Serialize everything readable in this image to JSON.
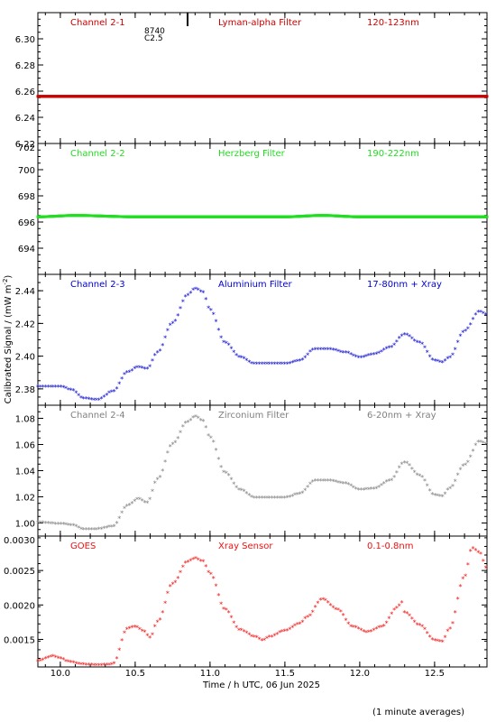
{
  "figure": {
    "ylabel": "Calibrated Signal / (mW m",
    "ylabel_sup": "-2",
    "ylabel_end": ")",
    "xlabel": "Time / h UTC, 06 Jun 2025",
    "footnote": "(1 minute averages)",
    "marker_label_1": "8740",
    "marker_label_2": "C2.5",
    "x_ticks": [
      "10.0",
      "10.5",
      "11.0",
      "11.5",
      "12.0",
      "12.5"
    ]
  },
  "chart_data": [
    {
      "type": "scatter",
      "channel": "Channel 2-1",
      "filter": "Lyman-alpha Filter",
      "band": "120-123nm",
      "color": "#cc0000",
      "xlim": [
        9.85,
        12.85
      ],
      "ylim": [
        6.22,
        6.32
      ],
      "yticks": [
        "6.22",
        "6.24",
        "6.26",
        "6.28",
        "6.30"
      ],
      "x": [
        9.85,
        10.5,
        11.0,
        11.5,
        12.0,
        12.5,
        12.85
      ],
      "y": [
        6.256,
        6.256,
        6.256,
        6.256,
        6.256,
        6.256,
        6.256
      ]
    },
    {
      "type": "scatter",
      "channel": "Channel 2-2",
      "filter": "Herzberg Filter",
      "band": "190-222nm",
      "color": "#22dd22",
      "xlim": [
        9.85,
        12.85
      ],
      "ylim": [
        692,
        702
      ],
      "yticks": [
        "694",
        "696",
        "698",
        "700",
        "702"
      ],
      "x": [
        9.85,
        10.1,
        10.5,
        11.0,
        11.5,
        11.75,
        12.0,
        12.5,
        12.85
      ],
      "y": [
        696.4,
        696.5,
        696.4,
        696.4,
        696.4,
        696.5,
        696.4,
        696.4,
        696.4
      ]
    },
    {
      "type": "scatter",
      "channel": "Channel 2-3",
      "filter": "Aluminium Filter",
      "band": "17-80nm + Xray",
      "color": "#0000cc",
      "xlim": [
        9.85,
        12.85
      ],
      "ylim": [
        2.37,
        2.45
      ],
      "yticks": [
        "2.38",
        "2.40",
        "2.42",
        "2.44"
      ],
      "x": [
        9.85,
        10.0,
        10.08,
        10.15,
        10.25,
        10.35,
        10.45,
        10.52,
        10.58,
        10.65,
        10.75,
        10.85,
        10.9,
        10.95,
        11.0,
        11.1,
        11.2,
        11.3,
        11.4,
        11.5,
        11.6,
        11.7,
        11.8,
        11.9,
        12.0,
        12.1,
        12.2,
        12.3,
        12.4,
        12.5,
        12.55,
        12.6,
        12.7,
        12.8,
        12.85
      ],
      "y": [
        2.381,
        2.381,
        2.379,
        2.374,
        2.373,
        2.378,
        2.39,
        2.393,
        2.392,
        2.402,
        2.42,
        2.437,
        2.441,
        2.439,
        2.428,
        2.408,
        2.399,
        2.395,
        2.395,
        2.395,
        2.397,
        2.404,
        2.404,
        2.402,
        2.399,
        2.401,
        2.405,
        2.413,
        2.408,
        2.397,
        2.396,
        2.399,
        2.415,
        2.427,
        2.425
      ]
    },
    {
      "type": "scatter",
      "channel": "Channel 2-4",
      "filter": "Zirconium Filter",
      "band": "6-20nm + Xray",
      "color": "#808080",
      "xlim": [
        9.85,
        12.85
      ],
      "ylim": [
        0.99,
        1.09
      ],
      "yticks": [
        "1.00",
        "1.02",
        "1.04",
        "1.06",
        "1.08"
      ],
      "x": [
        9.85,
        10.0,
        10.08,
        10.15,
        10.25,
        10.35,
        10.45,
        10.52,
        10.58,
        10.65,
        10.75,
        10.85,
        10.9,
        10.95,
        11.0,
        11.1,
        11.2,
        11.3,
        11.4,
        11.5,
        11.6,
        11.7,
        11.8,
        11.9,
        12.0,
        12.1,
        12.2,
        12.3,
        12.4,
        12.5,
        12.55,
        12.6,
        12.7,
        12.8,
        12.85
      ],
      "y": [
        1.0,
        0.999,
        0.998,
        0.995,
        0.995,
        0.997,
        1.013,
        1.018,
        1.015,
        1.033,
        1.06,
        1.077,
        1.081,
        1.078,
        1.065,
        1.038,
        1.025,
        1.019,
        1.019,
        1.019,
        1.022,
        1.032,
        1.032,
        1.03,
        1.025,
        1.026,
        1.032,
        1.046,
        1.036,
        1.021,
        1.02,
        1.026,
        1.044,
        1.062,
        1.06
      ]
    },
    {
      "type": "scatter",
      "channel": "GOES",
      "filter": "Xray Sensor",
      "band": "0.1-0.8nm",
      "color": "#ee1111",
      "xlim": [
        9.85,
        12.85
      ],
      "ylim": [
        0.0011,
        0.003
      ],
      "yticks": [
        "0.0015",
        "0.0020",
        "0.0025",
        "0.0030"
      ],
      "x": [
        9.85,
        9.95,
        10.0,
        10.05,
        10.15,
        10.25,
        10.35,
        10.45,
        10.5,
        10.55,
        10.6,
        10.65,
        10.75,
        10.85,
        10.9,
        10.95,
        11.0,
        11.1,
        11.2,
        11.3,
        11.35,
        11.4,
        11.5,
        11.6,
        11.65,
        11.75,
        11.85,
        11.95,
        12.05,
        12.15,
        12.25,
        12.28,
        12.3,
        12.4,
        12.5,
        12.55,
        12.6,
        12.7,
        12.75,
        12.8,
        12.85
      ],
      "y": [
        0.00118,
        0.00125,
        0.00122,
        0.00117,
        0.00113,
        0.00112,
        0.00113,
        0.00165,
        0.00168,
        0.00162,
        0.00152,
        0.00175,
        0.0023,
        0.00262,
        0.00267,
        0.00263,
        0.00245,
        0.00193,
        0.00163,
        0.00153,
        0.00148,
        0.00153,
        0.00162,
        0.00172,
        0.00182,
        0.00208,
        0.00193,
        0.00168,
        0.0016,
        0.00168,
        0.00195,
        0.00203,
        0.00188,
        0.0017,
        0.00148,
        0.00146,
        0.00165,
        0.0024,
        0.00282,
        0.00275,
        0.00252
      ]
    }
  ]
}
